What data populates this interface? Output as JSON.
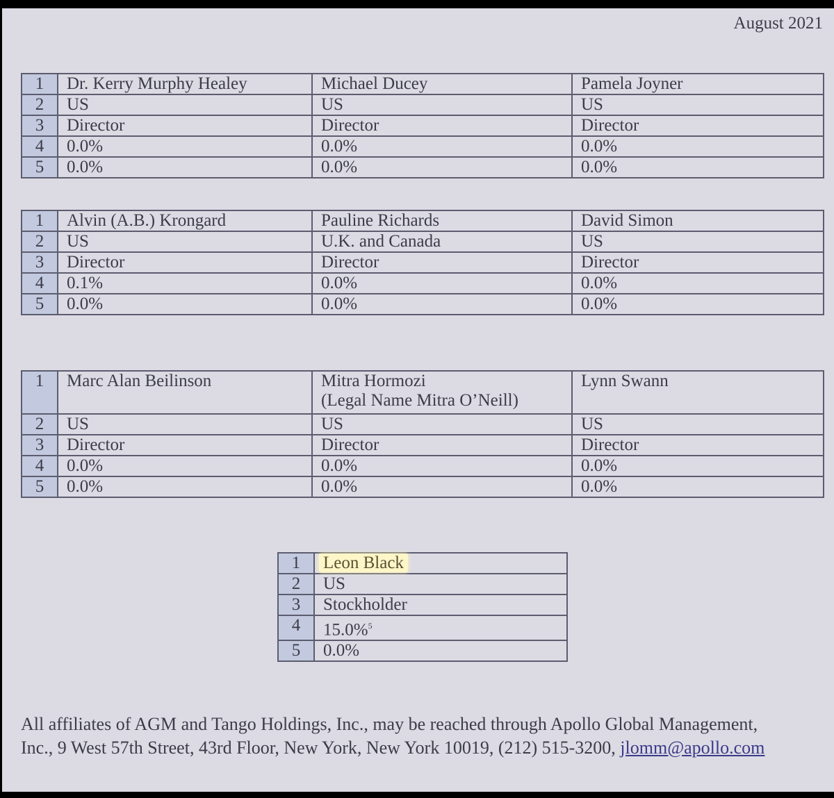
{
  "date": "August 2021",
  "tables": [
    {
      "rows": [
        [
          "1",
          "Dr. Kerry Murphy Healey",
          "Michael Ducey",
          "Pamela Joyner"
        ],
        [
          "2",
          "US",
          "US",
          "US"
        ],
        [
          "3",
          "Director",
          "Director",
          "Director"
        ],
        [
          "4",
          "0.0%",
          "0.0%",
          "0.0%"
        ],
        [
          "5",
          "0.0%",
          "0.0%",
          "0.0%"
        ]
      ]
    },
    {
      "rows": [
        [
          "1",
          "Alvin (A.B.) Krongard",
          "Pauline Richards",
          "David Simon"
        ],
        [
          "2",
          "US",
          "U.K. and Canada",
          "US"
        ],
        [
          "3",
          "Director",
          "Director",
          "Director"
        ],
        [
          "4",
          "0.1%",
          "0.0%",
          "0.0%"
        ],
        [
          "5",
          "0.0%",
          "0.0%",
          "0.0%"
        ]
      ]
    },
    {
      "rows": [
        [
          "1",
          "Marc Alan Beilinson",
          "Mitra Hormozi",
          "Lynn Swann"
        ],
        [
          "2",
          "US",
          "US",
          "US"
        ],
        [
          "3",
          "Director",
          "Director",
          "Director"
        ],
        [
          "4",
          "0.0%",
          "0.0%",
          "0.0%"
        ],
        [
          "5",
          "0.0%",
          "0.0%",
          "0.0%"
        ]
      ],
      "note": "(Legal Name Mitra O’Neill)"
    }
  ],
  "single": {
    "rows": [
      [
        "1",
        "Leon Black"
      ],
      [
        "2",
        "US"
      ],
      [
        "3",
        "Stockholder"
      ],
      [
        "4",
        "15.0%"
      ],
      [
        "5",
        "0.0%"
      ]
    ],
    "footnote": "5",
    "highlight_color": "#fdf6c8"
  },
  "footer": {
    "text": "All affiliates of AGM and Tango Holdings, Inc., may be reached through Apollo Global Management, Inc., 9 West 57th Street, 43rd Floor, New York, New York 10019, (212) 515-3200,",
    "email": "jlomm@apollo.com"
  }
}
